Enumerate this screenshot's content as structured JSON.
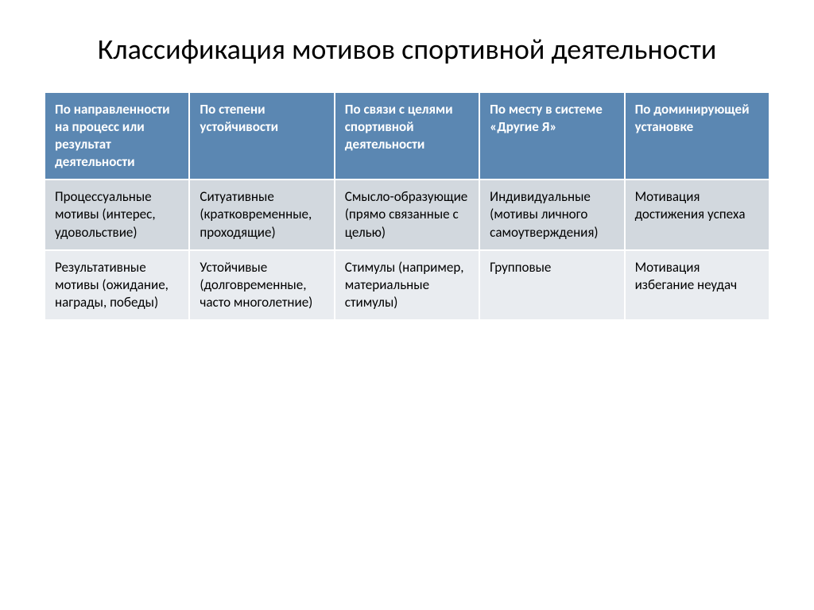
{
  "title": "Классификация мотивов спортивной деятельности",
  "table": {
    "header_bg": "#5b87b2",
    "header_fg": "#ffffff",
    "row_colors": [
      "#d2d8de",
      "#e9ecf0"
    ],
    "border_color": "#ffffff",
    "font_size_header": 17,
    "font_size_cell": 17,
    "columns": [
      "По направленности на процесс или результат деятельности",
      "По степени устойчивости",
      "По связи с целями спортивной деятельности",
      "По месту в системе «Другие Я»",
      "По доминирующей установке"
    ],
    "rows": [
      [
        "Процессуальные мотивы (интерес, удовольствие)",
        "Ситуативные (кратковременные, проходящие)",
        "Смысло-образующие (прямо связанные с целью)",
        "Индивидуальные (мотивы личного самоутверждения)",
        "Мотивация достижения успеха"
      ],
      [
        "Результативные мотивы (ожидание, награды, победы)",
        "Устойчивые (долговременные, часто многолетние)",
        "Стимулы (например, материальные стимулы)",
        "Групповые",
        "Мотивация избегание неудач"
      ]
    ]
  }
}
